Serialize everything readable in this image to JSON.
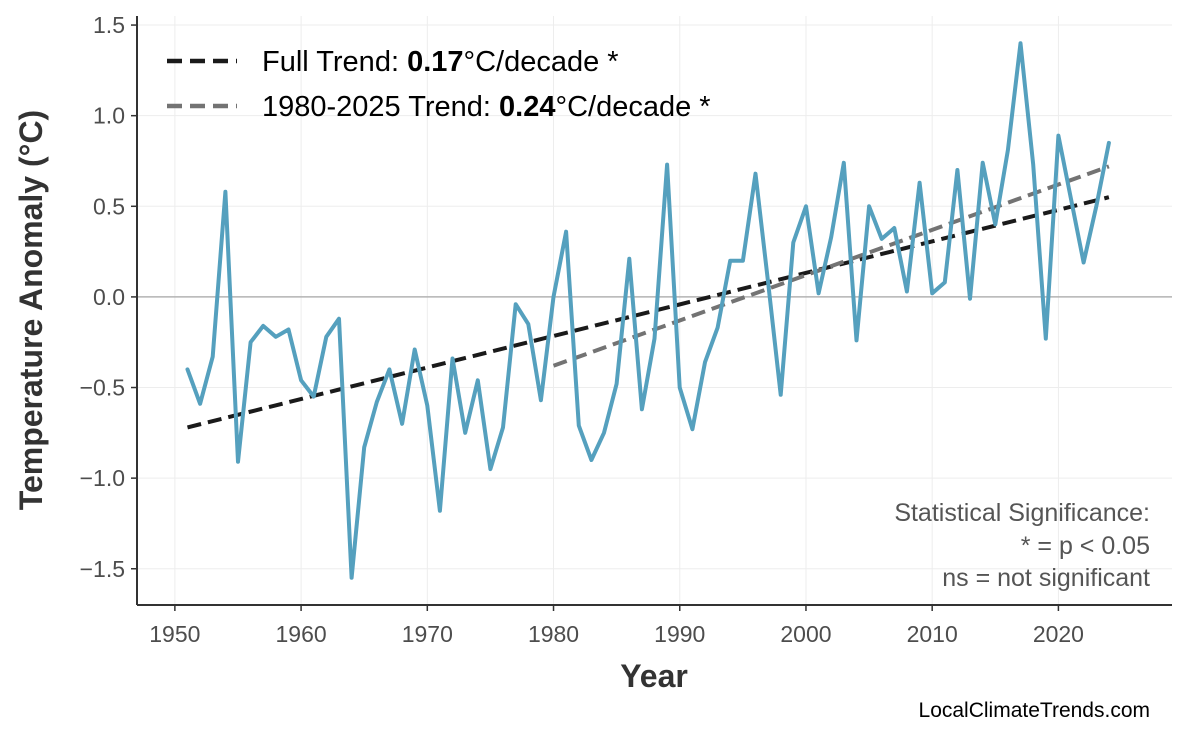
{
  "chart_data": {
    "type": "line",
    "xlabel": "Year",
    "ylabel": "Temperature Anomaly (°C)",
    "xlim": [
      1947,
      2029
    ],
    "ylim": [
      -1.7,
      1.55
    ],
    "xticks": [
      1950,
      1960,
      1970,
      1980,
      1990,
      2000,
      2010,
      2020
    ],
    "yticks": [
      1.5,
      1.0,
      0.5,
      0.0,
      -0.5,
      -1.0,
      -1.5
    ],
    "ytick_labels": [
      "1.5",
      "1.0",
      "0.5",
      "0.0",
      "−0.5",
      "−1.0",
      "−1.5"
    ],
    "grid": true,
    "zero_line": true,
    "legend_position": "top-left",
    "series": [
      {
        "color": "#55a0be",
        "x": [
          1951,
          1952,
          1953,
          1954,
          1955,
          1956,
          1957,
          1958,
          1959,
          1960,
          1961,
          1962,
          1963,
          1964,
          1965,
          1966,
          1967,
          1968,
          1969,
          1970,
          1971,
          1972,
          1973,
          1974,
          1975,
          1976,
          1977,
          1978,
          1979,
          1980,
          1981,
          1982,
          1983,
          1984,
          1985,
          1986,
          1987,
          1988,
          1989,
          1990,
          1991,
          1992,
          1993,
          1994,
          1995,
          1996,
          1997,
          1998,
          1999,
          2000,
          2001,
          2002,
          2003,
          2004,
          2005,
          2006,
          2007,
          2008,
          2009,
          2010,
          2011,
          2012,
          2013,
          2014,
          2015,
          2016,
          2017,
          2018,
          2019,
          2020,
          2021,
          2022,
          2023,
          2024
        ],
        "y": [
          -0.4,
          -0.59,
          -0.33,
          0.58,
          -0.91,
          -0.25,
          -0.16,
          -0.22,
          -0.18,
          -0.46,
          -0.55,
          -0.22,
          -0.12,
          -1.55,
          -0.83,
          -0.58,
          -0.4,
          -0.7,
          -0.29,
          -0.6,
          -1.18,
          -0.34,
          -0.75,
          -0.46,
          -0.95,
          -0.72,
          -0.04,
          -0.15,
          -0.57,
          0.0,
          0.36,
          -0.71,
          -0.9,
          -0.75,
          -0.48,
          0.21,
          -0.62,
          -0.23,
          0.73,
          -0.5,
          -0.73,
          -0.36,
          -0.17,
          0.2,
          0.2,
          0.68,
          0.08,
          -0.54,
          0.3,
          0.5,
          0.02,
          0.33,
          0.74,
          -0.24,
          0.5,
          0.32,
          0.38,
          0.03,
          0.63,
          0.02,
          0.08,
          0.7,
          -0.01,
          0.74,
          0.4,
          0.81,
          1.4,
          0.73,
          -0.23,
          0.89,
          0.54,
          0.19,
          0.5,
          0.85
        ]
      }
    ],
    "trends": [
      {
        "label_prefix": "Full Trend: ",
        "value": "0.17",
        "label_suffix": "°C/decade *",
        "color": "#1a1a1a",
        "x": [
          1951,
          2024
        ],
        "y": [
          -0.72,
          0.55
        ]
      },
      {
        "label_prefix": "1980-2025 Trend: ",
        "value": "0.24",
        "label_suffix": "°C/decade *",
        "color": "#737373",
        "x": [
          1980,
          2024
        ],
        "y": [
          -0.38,
          0.72
        ]
      }
    ],
    "annotation": [
      "Statistical Significance:",
      "* = p < 0.05",
      "ns = not significant"
    ],
    "credit": "LocalClimateTrends.com"
  }
}
